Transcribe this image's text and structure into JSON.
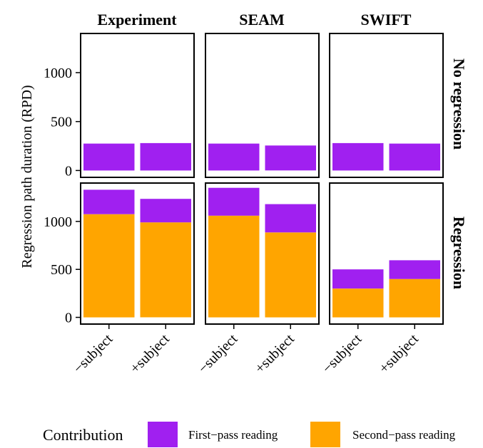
{
  "chart_data": {
    "type": "bar",
    "stacked": true,
    "facet_columns": [
      "Experiment",
      "SEAM",
      "SWIFT"
    ],
    "facet_rows": [
      "No regression",
      "Regression"
    ],
    "categories": [
      "−subject",
      "+subject"
    ],
    "ylabel": "Regression path duration (RPD)",
    "xlabel": "",
    "ylim": [
      -70,
      1400
    ],
    "yticks": [
      0,
      500,
      1000
    ],
    "grid": false,
    "legend": {
      "title": "Contribution",
      "position": "bottom",
      "entries": [
        {
          "name": "First−pass reading",
          "color": "#A020F0"
        },
        {
          "name": "Second−pass reading",
          "color": "#FFA500"
        }
      ]
    },
    "series_order": [
      "Second−pass reading",
      "First−pass reading"
    ],
    "panels": [
      {
        "row": "No regression",
        "col": "Experiment",
        "first_pass": [
          275,
          280
        ],
        "second_pass": [
          0,
          0
        ]
      },
      {
        "row": "No regression",
        "col": "SEAM",
        "first_pass": [
          275,
          255
        ],
        "second_pass": [
          0,
          0
        ]
      },
      {
        "row": "No regression",
        "col": "SWIFT",
        "first_pass": [
          280,
          275
        ],
        "second_pass": [
          0,
          0
        ]
      },
      {
        "row": "Regression",
        "col": "Experiment",
        "first_pass": [
          255,
          245
        ],
        "second_pass": [
          1075,
          990
        ]
      },
      {
        "row": "Regression",
        "col": "SEAM",
        "first_pass": [
          290,
          295
        ],
        "second_pass": [
          1060,
          885
        ]
      },
      {
        "row": "Regression",
        "col": "SWIFT",
        "first_pass": [
          200,
          195
        ],
        "second_pass": [
          300,
          400
        ]
      }
    ]
  }
}
